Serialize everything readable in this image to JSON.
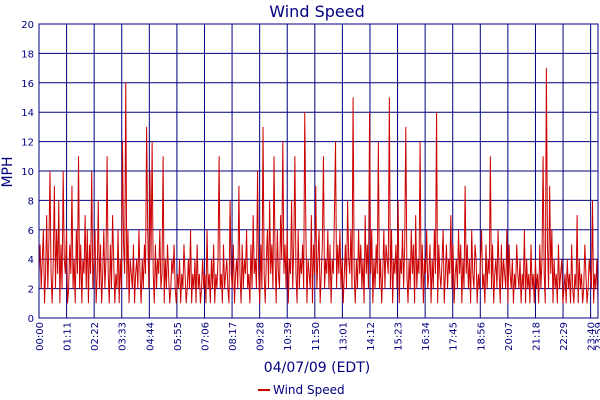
{
  "chart_data": {
    "type": "line",
    "title": "Wind Speed",
    "xlabel": "04/07/09 (EDT)",
    "ylabel": "MPH",
    "ylim": [
      0,
      20
    ],
    "yticks": [
      0,
      2,
      4,
      6,
      8,
      10,
      12,
      14,
      16,
      18,
      20
    ],
    "xtick_labels": [
      "00:00",
      "01:11",
      "02:22",
      "03:33",
      "04:44",
      "05:55",
      "07:06",
      "08:17",
      "09:28",
      "10:39",
      "11:50",
      "13:01",
      "14:12",
      "15:23",
      "16:34",
      "17:45",
      "18:56",
      "20:07",
      "21:18",
      "22:29",
      "23:40",
      "23:59"
    ],
    "grid": true,
    "legend": {
      "position": "bottom-center",
      "entries": [
        "Wind Speed"
      ]
    },
    "series": [
      {
        "name": "Wind Speed",
        "color": "#cc0000",
        "x_range": [
          "00:00",
          "23:59"
        ],
        "values": [
          3,
          5,
          2,
          4,
          6,
          1,
          3,
          7,
          2,
          5,
          10,
          3,
          1,
          4,
          9,
          2,
          6,
          3,
          8,
          1,
          5,
          2,
          10,
          4,
          3,
          6,
          1,
          2,
          5,
          3,
          9,
          2,
          4,
          1,
          6,
          3,
          11,
          2,
          5,
          1,
          4,
          3,
          7,
          2,
          6,
          1,
          5,
          3,
          10,
          2,
          4,
          6,
          1,
          3,
          8,
          2,
          5,
          1,
          3,
          6,
          2,
          4,
          11,
          3,
          1,
          5,
          2,
          7,
          4,
          1,
          3,
          2,
          6,
          1,
          4,
          2,
          12,
          5,
          3,
          16,
          2,
          6,
          1,
          4,
          3,
          2,
          5,
          1,
          3,
          4,
          2,
          6,
          3,
          1,
          4,
          2,
          5,
          3,
          13,
          6,
          2,
          10,
          4,
          12,
          3,
          1,
          5,
          2,
          4,
          3,
          6,
          2,
          3,
          11,
          1,
          4,
          2,
          5,
          3,
          1,
          2,
          4,
          3,
          5,
          2,
          1,
          3,
          2,
          4,
          1,
          3,
          2,
          5,
          3,
          1,
          2,
          4,
          2,
          6,
          1,
          3,
          2,
          4,
          1,
          5,
          2,
          3,
          1,
          2,
          4,
          2,
          3,
          1,
          6,
          2,
          3,
          1,
          4,
          2,
          5,
          1,
          3,
          2,
          4,
          11,
          2,
          3,
          1,
          5,
          2,
          3,
          4,
          2,
          1,
          8,
          3,
          2,
          5,
          1,
          3,
          4,
          2,
          9,
          3,
          1,
          5,
          2,
          4,
          3,
          6,
          2,
          3,
          1,
          5,
          2,
          7,
          3,
          4,
          2,
          10,
          3,
          1,
          5,
          2,
          13,
          3,
          1,
          4,
          6,
          2,
          8,
          3,
          5,
          2,
          11,
          4,
          1,
          6,
          3,
          2,
          7,
          4,
          12,
          3,
          5,
          2,
          6,
          1,
          4,
          3,
          8,
          2,
          5,
          11,
          3,
          1,
          6,
          2,
          4,
          3,
          5,
          2,
          14,
          6,
          1,
          4,
          3,
          2,
          7,
          1,
          5,
          3,
          9,
          2,
          4,
          6,
          1,
          3,
          5,
          11,
          2,
          4,
          3,
          6,
          2,
          5,
          1,
          4,
          3,
          7,
          12,
          2,
          5,
          3,
          6,
          2,
          4,
          1,
          3,
          5,
          2,
          8,
          4,
          3,
          6,
          2,
          15,
          3,
          1,
          4,
          2,
          6,
          3,
          5,
          2,
          4,
          1,
          7,
          3,
          5,
          2,
          14,
          3,
          6,
          1,
          4,
          2,
          5,
          3,
          12,
          2,
          4,
          1,
          3,
          6,
          2,
          5,
          4,
          3,
          15,
          2,
          6,
          1,
          4,
          3,
          5,
          2,
          8,
          1,
          4,
          3,
          6,
          2,
          5,
          13,
          3,
          1,
          4,
          2,
          6,
          3,
          5,
          1,
          7,
          2,
          4,
          3,
          12,
          2,
          5,
          1,
          4,
          3,
          6,
          2,
          3,
          5,
          1,
          4,
          2,
          6,
          3,
          14,
          1,
          5,
          3,
          2,
          4,
          6,
          1,
          3,
          5,
          2,
          4,
          3,
          7,
          2,
          5,
          1,
          3,
          4,
          2,
          6,
          3,
          5,
          1,
          4,
          2,
          9,
          3,
          5,
          2,
          4,
          1,
          6,
          3,
          2,
          5,
          4,
          1,
          3,
          2,
          4,
          6,
          2,
          3,
          1,
          5,
          2,
          4,
          3,
          11,
          2,
          5,
          1,
          3,
          4,
          2,
          6,
          3,
          1,
          5,
          2,
          4,
          3,
          2,
          6,
          1,
          5,
          3,
          2,
          4,
          1,
          3,
          2,
          5,
          3,
          2,
          4,
          1,
          3,
          2,
          6,
          1,
          4,
          2,
          3,
          1,
          5,
          2,
          3,
          1,
          4,
          2,
          3,
          1,
          5,
          2,
          4,
          11,
          3,
          1,
          17,
          5,
          2,
          9,
          3,
          6,
          1,
          4,
          2,
          3,
          1,
          5,
          2,
          3,
          4,
          1,
          2,
          3,
          1,
          4,
          2,
          3,
          1,
          5,
          2,
          1,
          3,
          2,
          7,
          1,
          4,
          2,
          3,
          1,
          2,
          5,
          3,
          1,
          2,
          4,
          3,
          2,
          8,
          1,
          3,
          2,
          4,
          1
        ]
      }
    ]
  }
}
